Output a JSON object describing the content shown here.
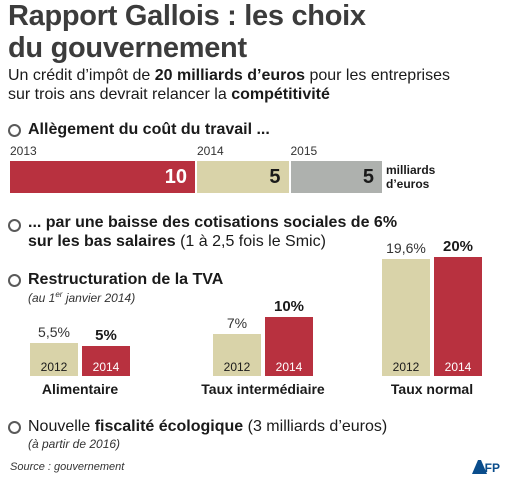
{
  "header": {
    "title_line1": "Rapport Gallois : les choix",
    "title_line2": "du gouvernement",
    "subtitle": {
      "p1": "Un crédit d’impôt de ",
      "b1": "20 milliards d’euros",
      "p2": " pour les entreprises",
      "p3": "sur trois ans devrait relancer la ",
      "b2": "compétitivité"
    }
  },
  "sections": {
    "s1": "Allègement du coût du travail ...",
    "s2_line1": "... par une baisse des cotisations sociales de 6%",
    "s2_line2_bold": "sur les bas salaires",
    "s2_line2_norm": " (1 à 2,5 fois le Smic)",
    "s3": "Restructuration de la TVA",
    "s3_note_a": "(au 1",
    "s3_note_sup": "er",
    "s3_note_b": " janvier 2014)",
    "s4_a": "Nouvelle ",
    "s4_b": "fiscalité écologique",
    "s4_c": " (3 milliards d’euros)",
    "s4_note": "(à partir de 2016)"
  },
  "colors": {
    "red": "#b8313f",
    "beige": "#d9d3a9",
    "grey": "#aeb1ae",
    "bullet": "#5a5a5a"
  },
  "chart_data": [
    {
      "type": "bar",
      "orientation": "stacked-horizontal",
      "categories": [
        "2013",
        "2014",
        "2015"
      ],
      "values": [
        10,
        5,
        5
      ],
      "unit_line1": "milliards",
      "unit_line2": "d’euros"
    },
    {
      "type": "bar",
      "categories": [
        "Alimentaire",
        "Taux intermédiaire",
        "Taux normal"
      ],
      "series": [
        {
          "name": "2012",
          "values": [
            5.5,
            7,
            19.6
          ],
          "labels": [
            "5,5%",
            "7%",
            "19,6%"
          ]
        },
        {
          "name": "2014",
          "values": [
            5,
            10,
            20
          ],
          "labels": [
            "5%",
            "10%",
            "20%"
          ]
        }
      ],
      "ylim": [
        0,
        20
      ]
    }
  ],
  "footer": {
    "source": "Source : gouvernement",
    "logo": "AFP"
  }
}
